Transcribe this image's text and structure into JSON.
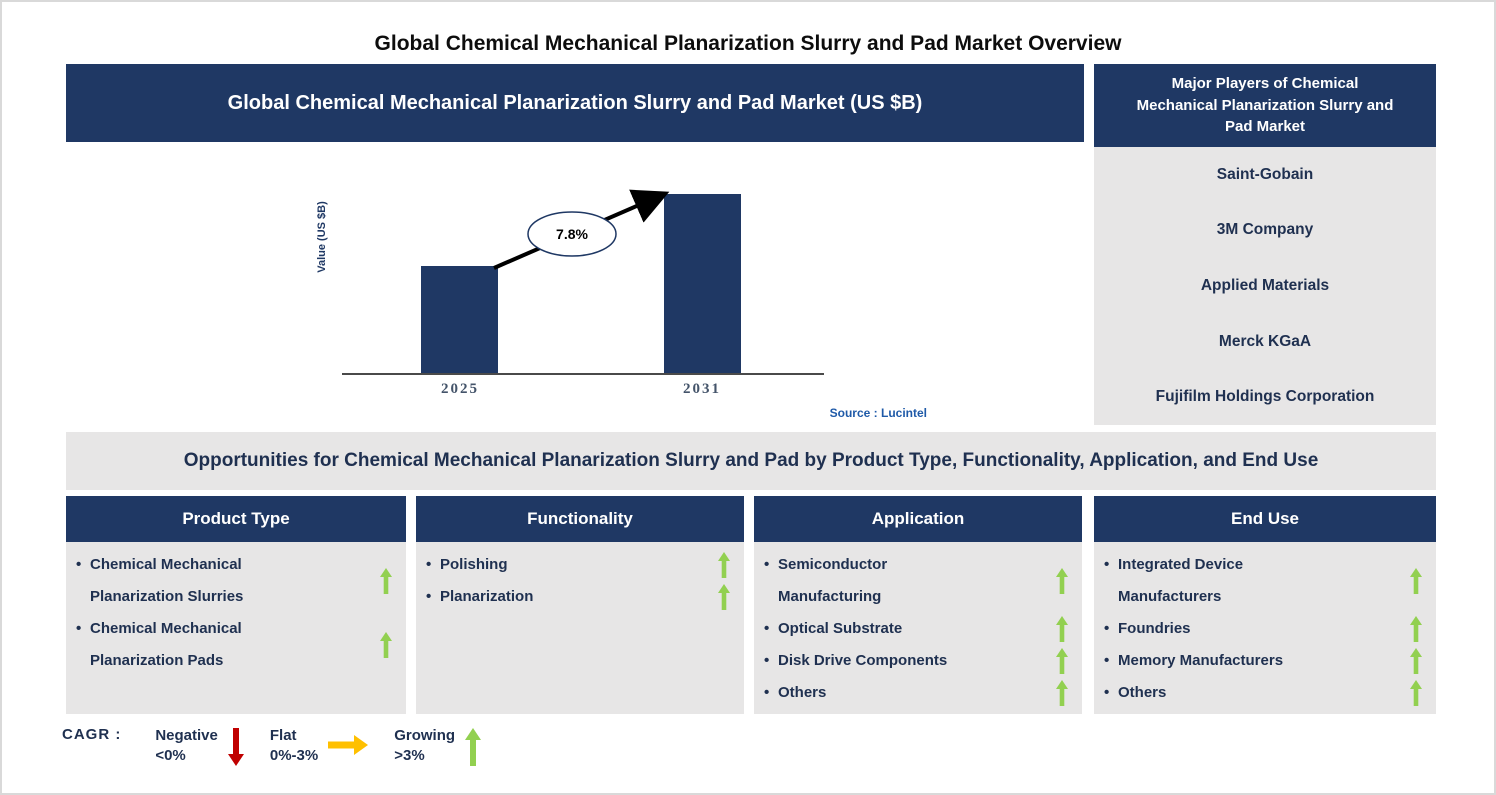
{
  "page_title": "Global Chemical Mechanical Planarization Slurry and Pad Market Overview",
  "chart": {
    "header": "Global Chemical Mechanical Planarization Slurry and Pad Market (US $B)",
    "source": "Source : Lucintel"
  },
  "chart_data": {
    "type": "bar",
    "title": "Global Chemical Mechanical Planarization Slurry and Pad Market (US $B)",
    "categories": [
      "2025",
      "2031"
    ],
    "values_relative": [
      0.6,
      1.0
    ],
    "values_note": "bars carry no numeric labels; 2031 bar is ~1.67x the 2025 bar height",
    "annotation": "7.8%",
    "cagr_percent": 7.8,
    "ylabel": "Value (US $B)",
    "xlabel": "",
    "grid": false,
    "legend_position": "none",
    "bar_color": "#1F3864"
  },
  "players_panel": {
    "header": "Major Players of Chemical Mechanical Planarization Slurry and Pad Market",
    "players": [
      "Saint-Gobain",
      "3M Company",
      "Applied Materials",
      "Merck KGaA",
      "Fujifilm Holdings Corporation"
    ]
  },
  "opportunities_heading": "Opportunities for Chemical Mechanical Planarization Slurry and Pad by Product Type, Functionality, Application, and End Use",
  "columns": [
    {
      "header": "Product Type",
      "items": [
        {
          "text": "Chemical Mechanical Planarization Slurries",
          "trend": "growing"
        },
        {
          "text": "Chemical Mechanical Planarization Pads",
          "trend": "growing"
        }
      ]
    },
    {
      "header": "Functionality",
      "items": [
        {
          "text": "Polishing",
          "trend": "growing"
        },
        {
          "text": "Planarization",
          "trend": "growing"
        }
      ]
    },
    {
      "header": "Application",
      "items": [
        {
          "text": "Semiconductor Manufacturing",
          "trend": "growing"
        },
        {
          "text": "Optical Substrate",
          "trend": "growing"
        },
        {
          "text": "Disk Drive Components",
          "trend": "growing"
        },
        {
          "text": "Others",
          "trend": "growing"
        }
      ]
    },
    {
      "header": "End Use",
      "items": [
        {
          "text": "Integrated Device Manufacturers",
          "trend": "growing"
        },
        {
          "text": "Foundries",
          "trend": "growing"
        },
        {
          "text": "Memory Manufacturers",
          "trend": "growing"
        },
        {
          "text": "Others",
          "trend": "growing"
        }
      ]
    }
  ],
  "legend": {
    "label": "CAGR :",
    "entries": [
      {
        "name": "Negative",
        "range": "<0%",
        "arrow": "down",
        "color": "#C00000"
      },
      {
        "name": "Flat",
        "range": "0%-3%",
        "arrow": "right",
        "color": "#FFC000"
      },
      {
        "name": "Growing",
        "range": ">3%",
        "arrow": "up",
        "color": "#92D050"
      }
    ]
  },
  "colors": {
    "navy": "#1F3864",
    "panel_gray": "#E7E6E6",
    "growing_green": "#92D050",
    "negative_red": "#C00000",
    "flat_yellow": "#FFC000",
    "source_blue": "#1F5AA8"
  }
}
